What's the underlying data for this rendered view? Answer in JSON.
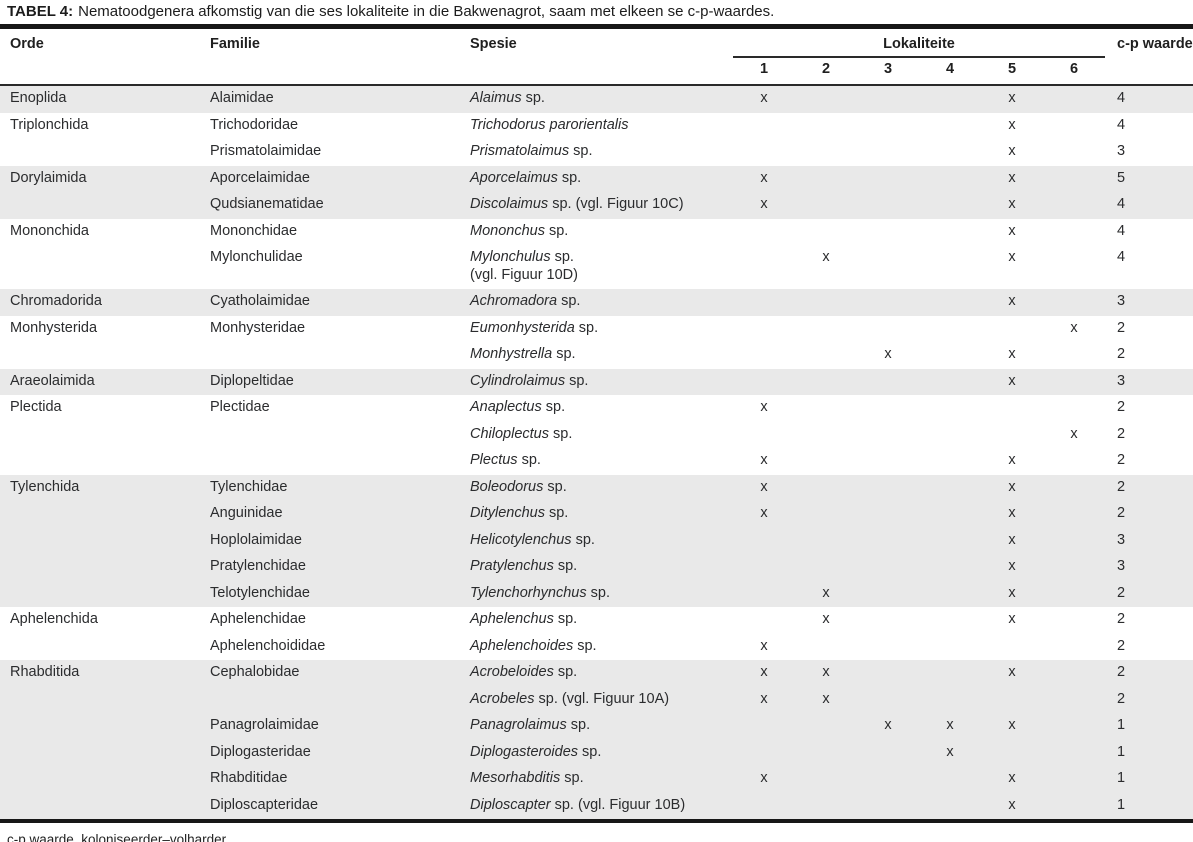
{
  "title": {
    "label": "TABEL 4:",
    "text": "Nematoodgenera afkomstig van die ses lokaliteite in die Bakwenagrot, saam met elkeen se c-p-waardes."
  },
  "table": {
    "headers": {
      "orde": "Orde",
      "familie": "Familie",
      "spesie": "Spesie",
      "lokaliteite": "Lokaliteite",
      "cp": "c-p waarde"
    },
    "locality_numbers": [
      "1",
      "2",
      "3",
      "4",
      "5",
      "6"
    ],
    "colors": {
      "shaded_row": "#e9e9e9",
      "text": "#2b2c2e",
      "bar": "#171717"
    },
    "rows": [
      {
        "orde": "Enoplida",
        "familie": "Alaimidae",
        "genus": "Alaimus",
        "species_rest": " sp.",
        "species_line2": "",
        "loc": [
          "x",
          "",
          "",
          "",
          "x",
          ""
        ],
        "cp": "4",
        "shaded": true
      },
      {
        "orde": "Triplonchida",
        "familie": "Trichodoridae",
        "genus": "Trichodorus parorientalis",
        "species_rest": "",
        "species_line2": "",
        "loc": [
          "",
          "",
          "",
          "",
          "x",
          ""
        ],
        "cp": "4",
        "shaded": false
      },
      {
        "orde": "",
        "familie": "Prismatolaimidae",
        "genus": "Prismatolaimus",
        "species_rest": " sp.",
        "species_line2": "",
        "loc": [
          "",
          "",
          "",
          "",
          "x",
          ""
        ],
        "cp": "3",
        "shaded": false
      },
      {
        "orde": "Dorylaimida",
        "familie": "Aporcelaimidae",
        "genus": "Aporcelaimus",
        "species_rest": " sp.",
        "species_line2": "",
        "loc": [
          "x",
          "",
          "",
          "",
          "x",
          ""
        ],
        "cp": "5",
        "shaded": true
      },
      {
        "orde": "",
        "familie": "Qudsianematidae",
        "genus": "Discolaimus",
        "species_rest": " sp. (vgl. Figuur 10C)",
        "species_line2": "",
        "loc": [
          "x",
          "",
          "",
          "",
          "x",
          ""
        ],
        "cp": "4",
        "shaded": true
      },
      {
        "orde": "Mononchida",
        "familie": "Mononchidae",
        "genus": "Mononchus",
        "species_rest": " sp.",
        "species_line2": "",
        "loc": [
          "",
          "",
          "",
          "",
          "x",
          ""
        ],
        "cp": "4",
        "shaded": false
      },
      {
        "orde": "",
        "familie": "Mylonchulidae",
        "genus": "Mylonchulus",
        "species_rest": " sp.",
        "species_line2": "(vgl. Figuur 10D)",
        "loc": [
          "",
          "x",
          "",
          "",
          "x",
          ""
        ],
        "cp": "4",
        "shaded": false
      },
      {
        "orde": "Chromadorida",
        "familie": "Cyatholaimidae",
        "genus": "Achromadora",
        "species_rest": " sp.",
        "species_line2": "",
        "loc": [
          "",
          "",
          "",
          "",
          "x",
          ""
        ],
        "cp": "3",
        "shaded": true
      },
      {
        "orde": "Monhysterida",
        "familie": "Monhysteridae",
        "genus": "Eumonhysterida",
        "species_rest": " sp.",
        "species_line2": "",
        "loc": [
          "",
          "",
          "",
          "",
          "",
          "x"
        ],
        "cp": "2",
        "shaded": false
      },
      {
        "orde": "",
        "familie": "",
        "genus": "Monhystrella",
        "species_rest": " sp.",
        "species_line2": "",
        "loc": [
          "",
          "",
          "x",
          "",
          "x",
          ""
        ],
        "cp": "2",
        "shaded": false
      },
      {
        "orde": "Araeolaimida",
        "familie": "Diplopeltidae",
        "genus": "Cylindrolaimus",
        "species_rest": " sp.",
        "species_line2": "",
        "loc": [
          "",
          "",
          "",
          "",
          "x",
          ""
        ],
        "cp": "3",
        "shaded": true
      },
      {
        "orde": "Plectida",
        "familie": "Plectidae",
        "genus": "Anaplectus",
        "species_rest": " sp.",
        "species_line2": "",
        "loc": [
          "x",
          "",
          "",
          "",
          "",
          ""
        ],
        "cp": "2",
        "shaded": false
      },
      {
        "orde": "",
        "familie": "",
        "genus": "Chiloplectus",
        "species_rest": " sp.",
        "species_line2": "",
        "loc": [
          "",
          "",
          "",
          "",
          "",
          "x"
        ],
        "cp": "2",
        "shaded": false
      },
      {
        "orde": "",
        "familie": "",
        "genus": "Plectus",
        "species_rest": " sp.",
        "species_line2": "",
        "loc": [
          "x",
          "",
          "",
          "",
          "x",
          ""
        ],
        "cp": "2",
        "shaded": false
      },
      {
        "orde": "Tylenchida",
        "familie": "Tylenchidae",
        "genus": "Boleodorus",
        "species_rest": " sp.",
        "species_line2": "",
        "loc": [
          "x",
          "",
          "",
          "",
          "x",
          ""
        ],
        "cp": "2",
        "shaded": true
      },
      {
        "orde": "",
        "familie": "Anguinidae",
        "genus": "Ditylenchus",
        "species_rest": " sp.",
        "species_line2": "",
        "loc": [
          "x",
          "",
          "",
          "",
          "x",
          ""
        ],
        "cp": "2",
        "shaded": true
      },
      {
        "orde": "",
        "familie": "Hoplolaimidae",
        "genus": "Helicotylenchus",
        "species_rest": " sp.",
        "species_line2": "",
        "loc": [
          "",
          "",
          "",
          "",
          "x",
          ""
        ],
        "cp": "3",
        "shaded": true
      },
      {
        "orde": "",
        "familie": "Pratylenchidae",
        "genus": "Pratylenchus",
        "species_rest": " sp.",
        "species_line2": "",
        "loc": [
          "",
          "",
          "",
          "",
          "x",
          ""
        ],
        "cp": "3",
        "shaded": true
      },
      {
        "orde": "",
        "familie": "Telotylenchidae",
        "genus": "Tylenchorhynchus",
        "species_rest": " sp.",
        "species_line2": "",
        "loc": [
          "",
          "x",
          "",
          "",
          "x",
          ""
        ],
        "cp": "2",
        "shaded": true
      },
      {
        "orde": "Aphelenchida",
        "familie": "Aphelenchidae",
        "genus": "Aphelenchus",
        "species_rest": " sp.",
        "species_line2": "",
        "loc": [
          "",
          "x",
          "",
          "",
          "x",
          ""
        ],
        "cp": "2",
        "shaded": false
      },
      {
        "orde": "",
        "familie": "Aphelenchoididae",
        "genus": "Aphelenchoides",
        "species_rest": " sp.",
        "species_line2": "",
        "loc": [
          "x",
          "",
          "",
          "",
          "",
          ""
        ],
        "cp": "2",
        "shaded": false
      },
      {
        "orde": "Rhabditida",
        "familie": "Cephalobidae",
        "genus": "Acrobeloides",
        "species_rest": " sp.",
        "species_line2": "",
        "loc": [
          "x",
          "x",
          "",
          "",
          "x",
          ""
        ],
        "cp": "2",
        "shaded": true
      },
      {
        "orde": "",
        "familie": "",
        "genus": "Acrobeles",
        "species_rest": " sp. (vgl. Figuur 10A)",
        "species_line2": "",
        "loc": [
          "x",
          "x",
          "",
          "",
          "",
          ""
        ],
        "cp": "2",
        "shaded": true
      },
      {
        "orde": "",
        "familie": "Panagrolaimidae",
        "genus": "Panagrolaimus",
        "species_rest": " sp.",
        "species_line2": "",
        "loc": [
          "",
          "",
          "x",
          "x",
          "x",
          ""
        ],
        "cp": "1",
        "shaded": true
      },
      {
        "orde": "",
        "familie": "Diplogasteridae",
        "genus": "Diplogasteroides",
        "species_rest": " sp.",
        "species_line2": "",
        "loc": [
          "",
          "",
          "",
          "x",
          "",
          ""
        ],
        "cp": "1",
        "shaded": true
      },
      {
        "orde": "",
        "familie": "Rhabditidae",
        "genus": "Mesorhabditis",
        "species_rest": " sp.",
        "species_line2": "",
        "loc": [
          "x",
          "",
          "",
          "",
          "x",
          ""
        ],
        "cp": "1",
        "shaded": true
      },
      {
        "orde": "",
        "familie": "Diploscapteridae",
        "genus": "Diploscapter",
        "species_rest": " sp. (vgl. Figuur 10B)",
        "species_line2": "",
        "loc": [
          "",
          "",
          "",
          "",
          "x",
          ""
        ],
        "cp": "1",
        "shaded": true
      }
    ]
  },
  "footnote": "c-p waarde, koloniseerder–volharder"
}
